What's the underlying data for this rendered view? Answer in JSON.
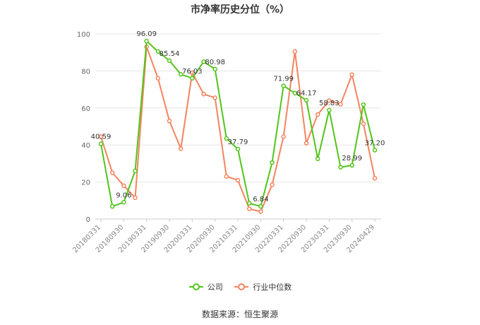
{
  "chart_data": {
    "type": "line",
    "title": "市净率历史分位（%）",
    "xlabel": "",
    "ylabel": "",
    "ylim": [
      0,
      100
    ],
    "yticks": [
      0,
      20,
      40,
      60,
      80,
      100
    ],
    "x_tick_labels": [
      "20180331",
      "20180930",
      "20190331",
      "20190930",
      "20200331",
      "20200930",
      "20210331",
      "20210930",
      "20220331",
      "20220930",
      "20230331",
      "20230930",
      "20240429"
    ],
    "grid": true,
    "legend_position": "bottom",
    "series": [
      {
        "name": "公司",
        "color": "#52c41a",
        "values": [
          40.59,
          6.8,
          9.06,
          26.0,
          96.09,
          90.5,
          85.54,
          78.2,
          76.03,
          85.0,
          80.98,
          43.5,
          37.79,
          8.5,
          6.84,
          30.5,
          71.99,
          68.0,
          64.17,
          32.5,
          58.83,
          28.0,
          28.99,
          61.8,
          37.2
        ]
      },
      {
        "name": "行业中位数",
        "color": "#f4845f",
        "values": [
          44.5,
          25.0,
          18.0,
          11.5,
          93.0,
          76.0,
          53.0,
          38.0,
          79.0,
          67.5,
          65.5,
          23.0,
          21.0,
          5.5,
          4.0,
          18.5,
          44.5,
          90.5,
          41.0,
          56.5,
          64.0,
          62.0,
          78.0,
          51.5,
          22.0
        ]
      }
    ],
    "data_labels": [
      {
        "index": 0,
        "text": "40.59"
      },
      {
        "index": 2,
        "text": "9.06"
      },
      {
        "index": 4,
        "text": "96.09"
      },
      {
        "index": 6,
        "text": "85.54"
      },
      {
        "index": 8,
        "text": "76.03"
      },
      {
        "index": 10,
        "text": "80.98"
      },
      {
        "index": 12,
        "text": "37.79"
      },
      {
        "index": 14,
        "text": "6.84"
      },
      {
        "index": 16,
        "text": "71.99"
      },
      {
        "index": 18,
        "text": "64.17"
      },
      {
        "index": 20,
        "text": "58.83"
      },
      {
        "index": 22,
        "text": "28.99"
      },
      {
        "index": 24,
        "text": "37.20"
      }
    ]
  },
  "footer": {
    "source": "数据来源：恒生聚源"
  }
}
